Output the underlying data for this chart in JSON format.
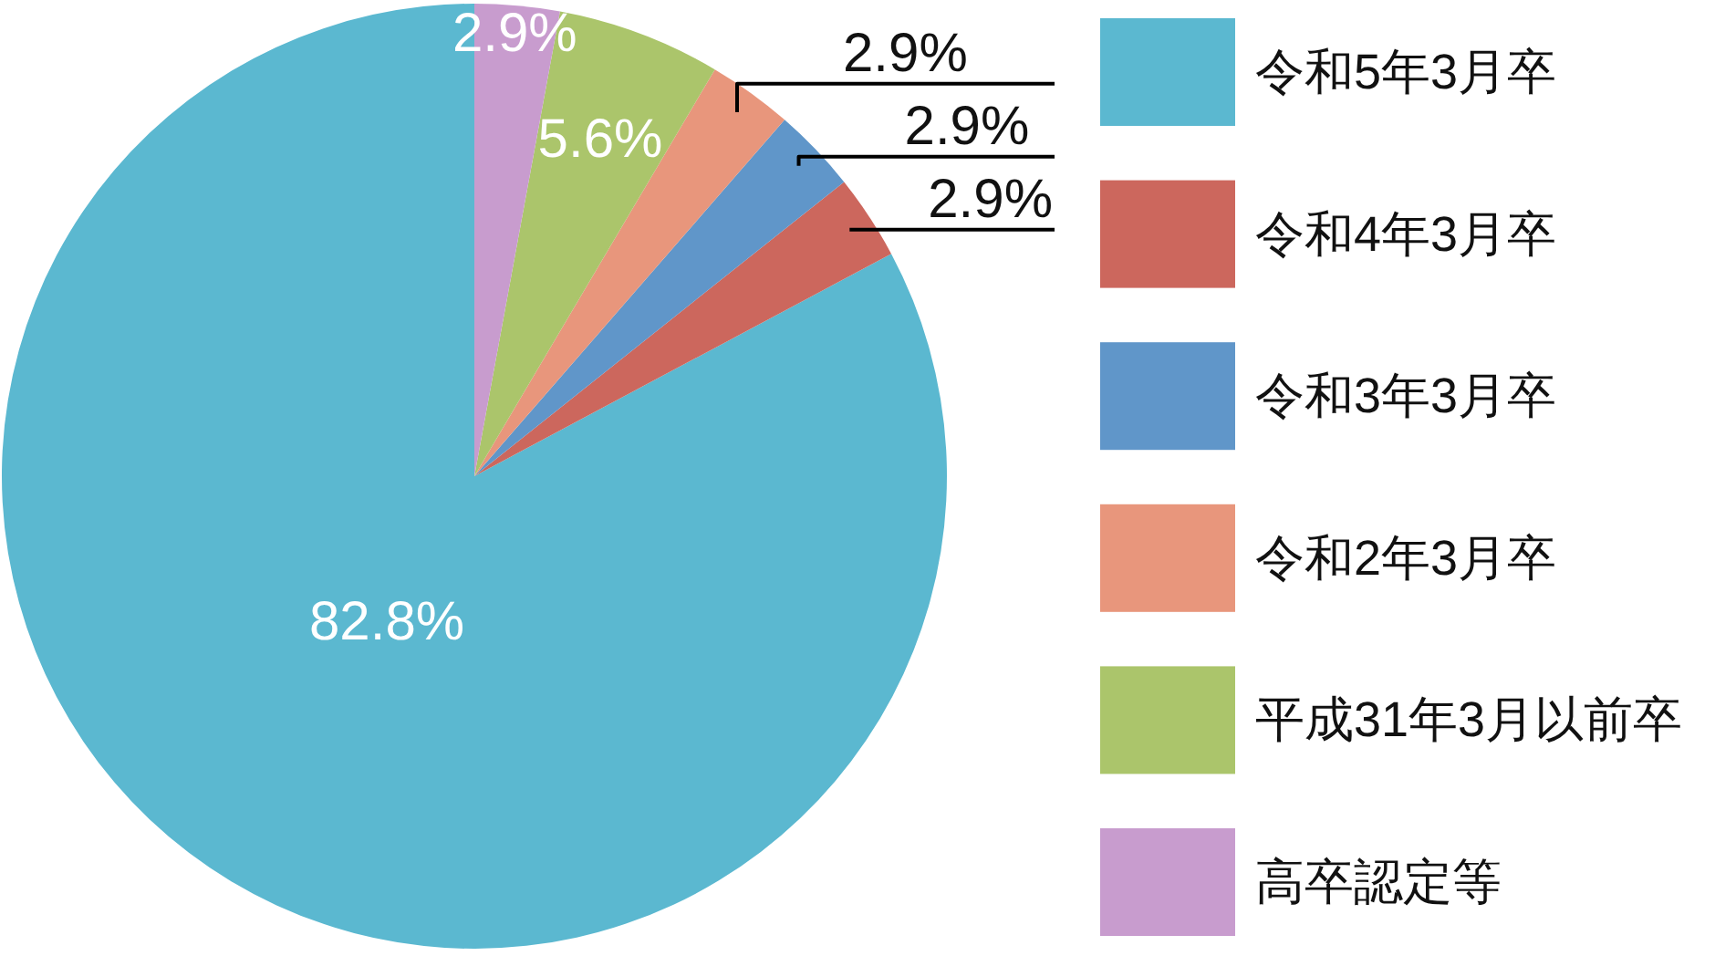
{
  "chart_data": {
    "type": "pie",
    "categories": [
      "令和5年3月卒",
      "令和4年3月卒",
      "令和3年3月卒",
      "令和2年3月卒",
      "平成31年3月以前卒",
      "高卒認定等"
    ],
    "values": [
      82.8,
      2.9,
      2.9,
      2.9,
      5.6,
      2.9
    ],
    "colors": [
      "#5bb8d0",
      "#cc675d",
      "#6096c9",
      "#e8967c",
      "#abc56b",
      "#c89cce"
    ],
    "value_labels": [
      "82.8%",
      "2.9%",
      "2.9%",
      "2.9%",
      "5.6%",
      "2.9%"
    ],
    "legend": "right"
  }
}
